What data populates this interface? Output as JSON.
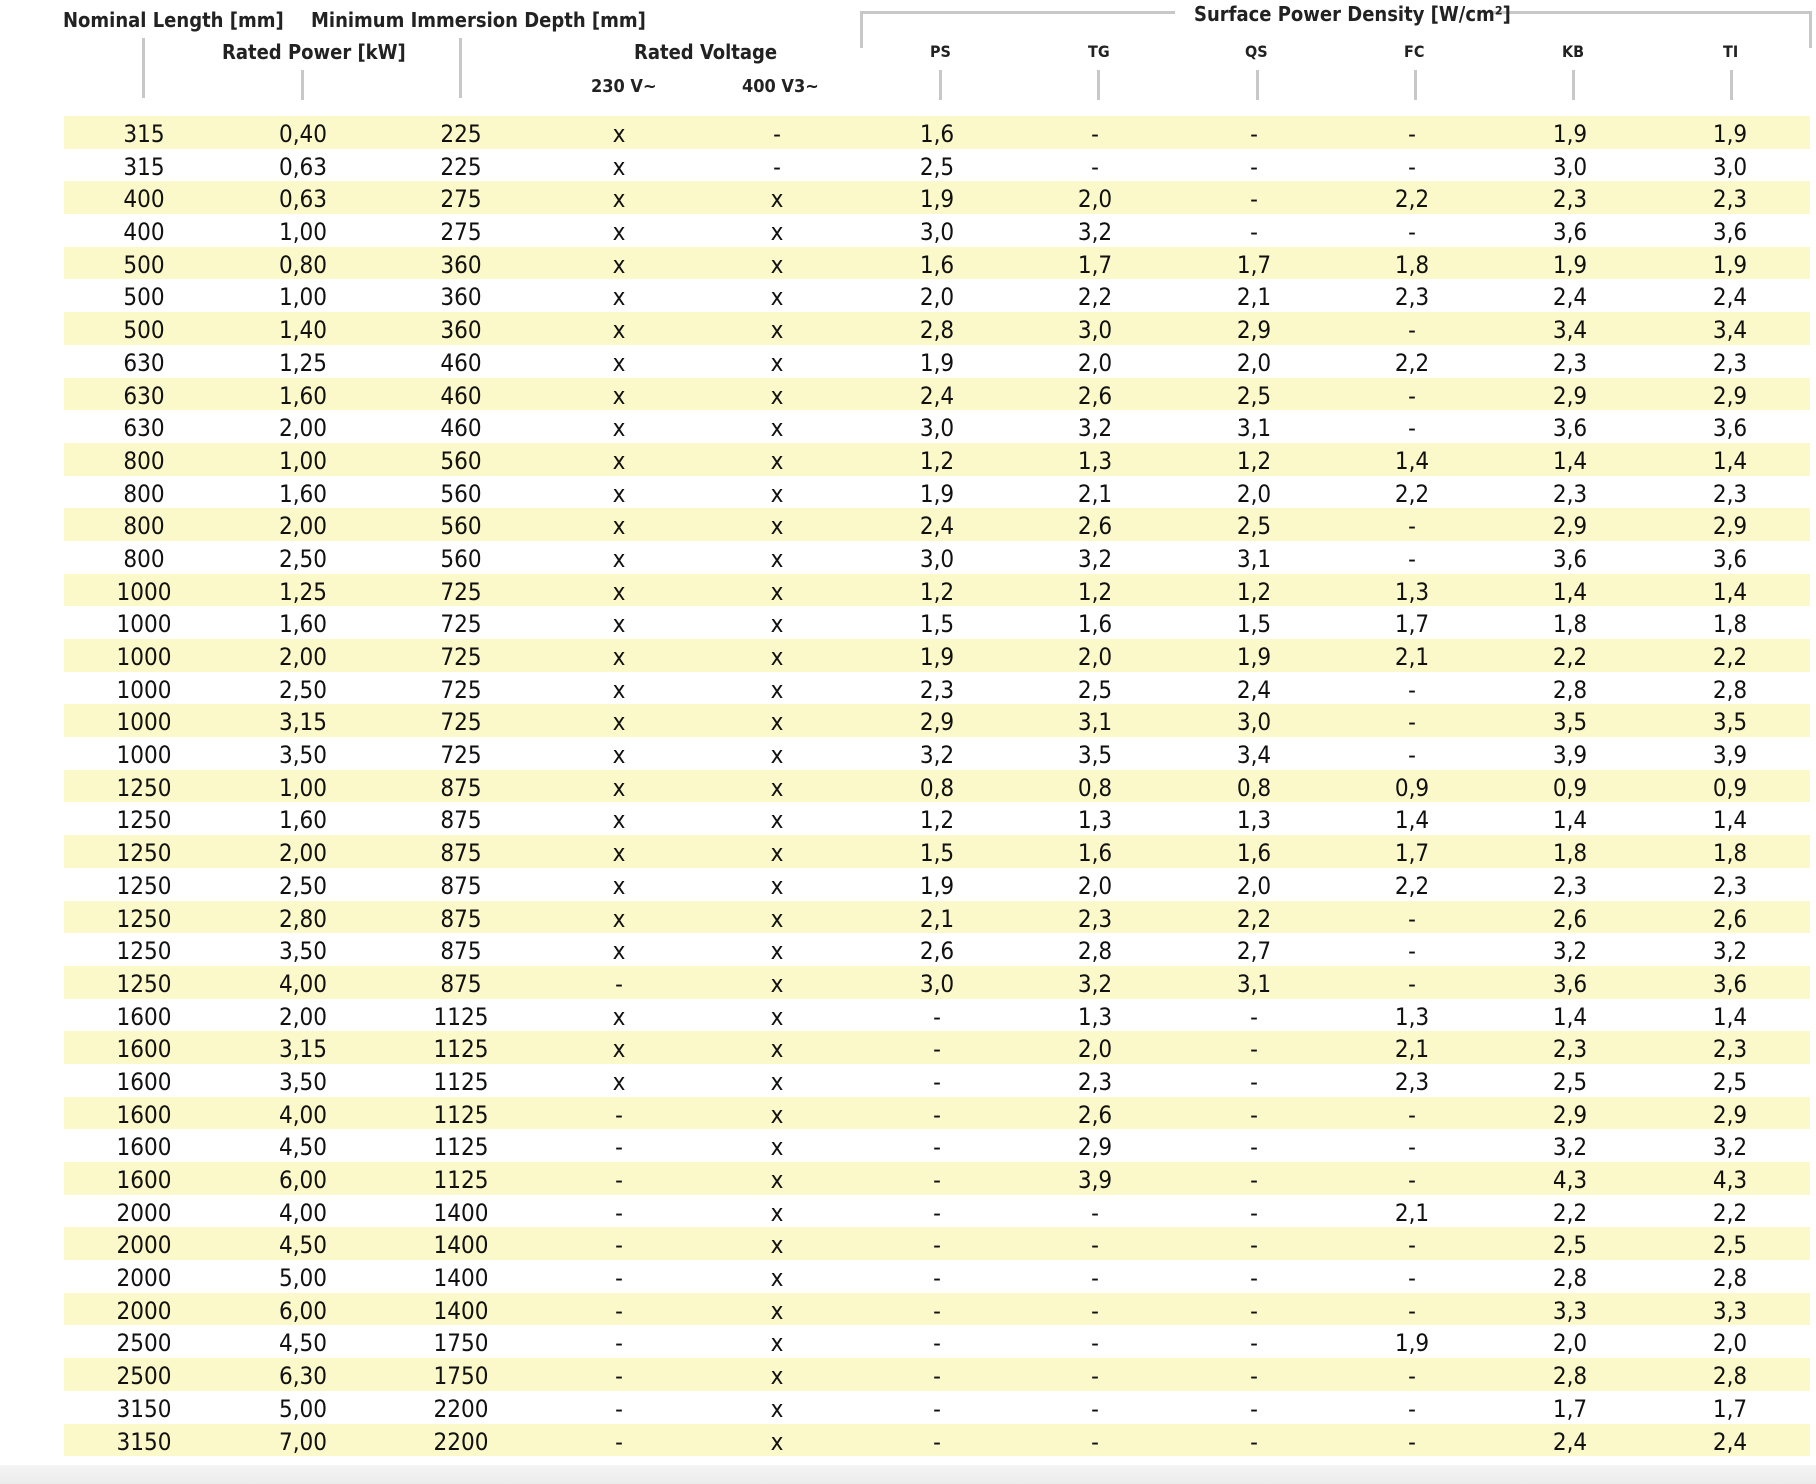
{
  "headers": {
    "nominal_length": "Nominal Length [mm]",
    "min_immersion": "Minimum Immersion Depth [mm]",
    "rated_power": "Rated Power [kW]",
    "rated_voltage": "Rated Voltage",
    "v230": "230 V~",
    "v400": "400 V3~",
    "surface_power_density": "Surface Power Density [W/cm²]",
    "ps": "PS",
    "tg": "TG",
    "qs": "QS",
    "fc": "FC",
    "kb": "KB",
    "ti": "TI"
  },
  "columns": [
    "nominal_length",
    "rated_power",
    "immersion_depth",
    "v230",
    "v400",
    "ps",
    "tg",
    "qs",
    "fc",
    "kb",
    "ti"
  ],
  "rows": [
    [
      "315",
      "0,40",
      "225",
      "x",
      "-",
      "1,6",
      "-",
      "-",
      "-",
      "1,9",
      "1,9"
    ],
    [
      "315",
      "0,63",
      "225",
      "x",
      "-",
      "2,5",
      "-",
      "-",
      "-",
      "3,0",
      "3,0"
    ],
    [
      "400",
      "0,63",
      "275",
      "x",
      "x",
      "1,9",
      "2,0",
      "-",
      "2,2",
      "2,3",
      "2,3"
    ],
    [
      "400",
      "1,00",
      "275",
      "x",
      "x",
      "3,0",
      "3,2",
      "-",
      "-",
      "3,6",
      "3,6"
    ],
    [
      "500",
      "0,80",
      "360",
      "x",
      "x",
      "1,6",
      "1,7",
      "1,7",
      "1,8",
      "1,9",
      "1,9"
    ],
    [
      "500",
      "1,00",
      "360",
      "x",
      "x",
      "2,0",
      "2,2",
      "2,1",
      "2,3",
      "2,4",
      "2,4"
    ],
    [
      "500",
      "1,40",
      "360",
      "x",
      "x",
      "2,8",
      "3,0",
      "2,9",
      "-",
      "3,4",
      "3,4"
    ],
    [
      "630",
      "1,25",
      "460",
      "x",
      "x",
      "1,9",
      "2,0",
      "2,0",
      "2,2",
      "2,3",
      "2,3"
    ],
    [
      "630",
      "1,60",
      "460",
      "x",
      "x",
      "2,4",
      "2,6",
      "2,5",
      "-",
      "2,9",
      "2,9"
    ],
    [
      "630",
      "2,00",
      "460",
      "x",
      "x",
      "3,0",
      "3,2",
      "3,1",
      "-",
      "3,6",
      "3,6"
    ],
    [
      "800",
      "1,00",
      "560",
      "x",
      "x",
      "1,2",
      "1,3",
      "1,2",
      "1,4",
      "1,4",
      "1,4"
    ],
    [
      "800",
      "1,60",
      "560",
      "x",
      "x",
      "1,9",
      "2,1",
      "2,0",
      "2,2",
      "2,3",
      "2,3"
    ],
    [
      "800",
      "2,00",
      "560",
      "x",
      "x",
      "2,4",
      "2,6",
      "2,5",
      "-",
      "2,9",
      "2,9"
    ],
    [
      "800",
      "2,50",
      "560",
      "x",
      "x",
      "3,0",
      "3,2",
      "3,1",
      "-",
      "3,6",
      "3,6"
    ],
    [
      "1000",
      "1,25",
      "725",
      "x",
      "x",
      "1,2",
      "1,2",
      "1,2",
      "1,3",
      "1,4",
      "1,4"
    ],
    [
      "1000",
      "1,60",
      "725",
      "x",
      "x",
      "1,5",
      "1,6",
      "1,5",
      "1,7",
      "1,8",
      "1,8"
    ],
    [
      "1000",
      "2,00",
      "725",
      "x",
      "x",
      "1,9",
      "2,0",
      "1,9",
      "2,1",
      "2,2",
      "2,2"
    ],
    [
      "1000",
      "2,50",
      "725",
      "x",
      "x",
      "2,3",
      "2,5",
      "2,4",
      "-",
      "2,8",
      "2,8"
    ],
    [
      "1000",
      "3,15",
      "725",
      "x",
      "x",
      "2,9",
      "3,1",
      "3,0",
      "-",
      "3,5",
      "3,5"
    ],
    [
      "1000",
      "3,50",
      "725",
      "x",
      "x",
      "3,2",
      "3,5",
      "3,4",
      "-",
      "3,9",
      "3,9"
    ],
    [
      "1250",
      "1,00",
      "875",
      "x",
      "x",
      "0,8",
      "0,8",
      "0,8",
      "0,9",
      "0,9",
      "0,9"
    ],
    [
      "1250",
      "1,60",
      "875",
      "x",
      "x",
      "1,2",
      "1,3",
      "1,3",
      "1,4",
      "1,4",
      "1,4"
    ],
    [
      "1250",
      "2,00",
      "875",
      "x",
      "x",
      "1,5",
      "1,6",
      "1,6",
      "1,7",
      "1,8",
      "1,8"
    ],
    [
      "1250",
      "2,50",
      "875",
      "x",
      "x",
      "1,9",
      "2,0",
      "2,0",
      "2,2",
      "2,3",
      "2,3"
    ],
    [
      "1250",
      "2,80",
      "875",
      "x",
      "x",
      "2,1",
      "2,3",
      "2,2",
      "-",
      "2,6",
      "2,6"
    ],
    [
      "1250",
      "3,50",
      "875",
      "x",
      "x",
      "2,6",
      "2,8",
      "2,7",
      "-",
      "3,2",
      "3,2"
    ],
    [
      "1250",
      "4,00",
      "875",
      "-",
      "x",
      "3,0",
      "3,2",
      "3,1",
      "-",
      "3,6",
      "3,6"
    ],
    [
      "1600",
      "2,00",
      "1125",
      "x",
      "x",
      "-",
      "1,3",
      "-",
      "1,3",
      "1,4",
      "1,4"
    ],
    [
      "1600",
      "3,15",
      "1125",
      "x",
      "x",
      "-",
      "2,0",
      "-",
      "2,1",
      "2,3",
      "2,3"
    ],
    [
      "1600",
      "3,50",
      "1125",
      "x",
      "x",
      "-",
      "2,3",
      "-",
      "2,3",
      "2,5",
      "2,5"
    ],
    [
      "1600",
      "4,00",
      "1125",
      "-",
      "x",
      "-",
      "2,6",
      "-",
      "-",
      "2,9",
      "2,9"
    ],
    [
      "1600",
      "4,50",
      "1125",
      "-",
      "x",
      "-",
      "2,9",
      "-",
      "-",
      "3,2",
      "3,2"
    ],
    [
      "1600",
      "6,00",
      "1125",
      "-",
      "x",
      "-",
      "3,9",
      "-",
      "-",
      "4,3",
      "4,3"
    ],
    [
      "2000",
      "4,00",
      "1400",
      "-",
      "x",
      "-",
      "-",
      "-",
      "2,1",
      "2,2",
      "2,2"
    ],
    [
      "2000",
      "4,50",
      "1400",
      "-",
      "x",
      "-",
      "-",
      "-",
      "-",
      "2,5",
      "2,5"
    ],
    [
      "2000",
      "5,00",
      "1400",
      "-",
      "x",
      "-",
      "-",
      "-",
      "-",
      "2,8",
      "2,8"
    ],
    [
      "2000",
      "6,00",
      "1400",
      "-",
      "x",
      "-",
      "-",
      "-",
      "-",
      "3,3",
      "3,3"
    ],
    [
      "2500",
      "4,50",
      "1750",
      "-",
      "x",
      "-",
      "-",
      "-",
      "1,9",
      "2,0",
      "2,0"
    ],
    [
      "2500",
      "6,30",
      "1750",
      "-",
      "x",
      "-",
      "-",
      "-",
      "-",
      "2,8",
      "2,8"
    ],
    [
      "3150",
      "5,00",
      "2200",
      "-",
      "x",
      "-",
      "-",
      "-",
      "-",
      "1,7",
      "1,7"
    ],
    [
      "3150",
      "7,00",
      "2200",
      "-",
      "x",
      "-",
      "-",
      "-",
      "-",
      "2,4",
      "2,4"
    ]
  ]
}
